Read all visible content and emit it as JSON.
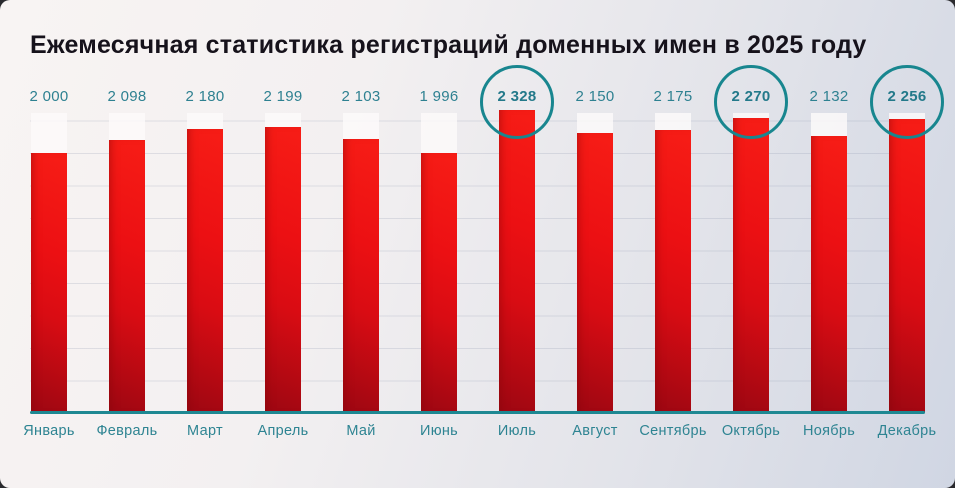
{
  "title": "Ежемесячная статистика регистраций доменных имен в 2025 году",
  "chart_data": {
    "type": "bar",
    "title": "Ежемесячная статистика регистраций доменных имен в 2025 году",
    "categories": [
      "Январь",
      "Февраль",
      "Март",
      "Апрель",
      "Май",
      "Июнь",
      "Июль",
      "Август",
      "Сентябрь",
      "Октябрь",
      "Ноябрь",
      "Декабрь"
    ],
    "values": [
      2000,
      2098,
      2180,
      2199,
      2103,
      1996,
      2328,
      2150,
      2175,
      2270,
      2132,
      2256
    ],
    "display_values": [
      "2 000",
      "2 098",
      "2 180",
      "2 199",
      "2 103",
      "1 996",
      "2 328",
      "2 150",
      "2 175",
      "2 270",
      "2 132",
      "2 256"
    ],
    "highlight_indices": [
      6,
      9,
      11
    ],
    "xlabel": "",
    "ylabel": "",
    "ylim": [
      0,
      2328
    ],
    "grid": true,
    "legend": "none"
  },
  "colors": {
    "bar_top": "#f71d16",
    "bar_bottom": "#9c0712",
    "teal_text": "#2e8191",
    "teal_accent": "#18868f",
    "axis": "#1e8892",
    "title_text": "#16121b",
    "track": "#fbf9f9",
    "bg_start": "#f8f4f3",
    "bg_end": "#d0d6e3"
  }
}
